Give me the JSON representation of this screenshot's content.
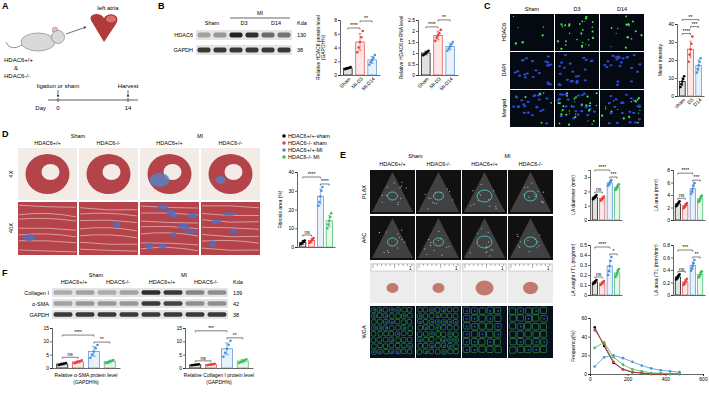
{
  "chart_data": [
    {
      "type": "bar",
      "y_label": "Relative HDAC6 protein level (GAPDH%)",
      "categories": [
        "Sham",
        "MI-D3",
        "MI-D14"
      ],
      "values": [
        1.0,
        4.8,
        2.2
      ],
      "errors": [
        0.1,
        1.2,
        0.5
      ],
      "points": [
        [
          0.85,
          0.95,
          1.0,
          1.05,
          1.15
        ],
        [
          3.3,
          4.0,
          4.8,
          5.5,
          6.4
        ],
        [
          1.5,
          1.9,
          2.2,
          2.5,
          2.9
        ]
      ],
      "colors": [
        "#000000",
        "#e8413c",
        "#4a90d9"
      ],
      "ylim": [
        0,
        8
      ],
      "yticks": [
        0,
        2,
        4,
        6,
        8
      ],
      "annotations": [
        {
          "from": 0,
          "to": 1,
          "text": "****"
        },
        {
          "from": 1,
          "to": 2,
          "text": "**"
        }
      ]
    },
    {
      "type": "bar",
      "y_label": "Relative HDAC6 mRNA level",
      "categories": [
        "Sham",
        "MI-D3",
        "MI-D14"
      ],
      "values": [
        1.0,
        1.8,
        1.3
      ],
      "errors": [
        0.08,
        0.2,
        0.15
      ],
      "points": [
        [
          0.9,
          0.95,
          1.0,
          1.05,
          1.1
        ],
        [
          1.55,
          1.7,
          1.8,
          1.9,
          2.05
        ],
        [
          1.1,
          1.2,
          1.3,
          1.4,
          1.5
        ]
      ],
      "colors": [
        "#000000",
        "#e8413c",
        "#4a90d9"
      ],
      "ylim": [
        0,
        2.5
      ],
      "yticks": [
        0,
        0.5,
        1,
        1.5,
        2,
        2.5
      ],
      "annotations": [
        {
          "from": 0,
          "to": 1,
          "text": "****"
        },
        {
          "from": 1,
          "to": 2,
          "text": "**"
        }
      ]
    },
    {
      "type": "bar",
      "y_label": "Mean intensity",
      "categories": [
        "sham",
        "D3",
        "D14"
      ],
      "values": [
        8,
        26,
        17
      ],
      "errors": [
        2,
        4.5,
        3
      ],
      "points": [
        [
          5,
          6.5,
          8,
          9.5,
          11
        ],
        [
          19,
          23,
          26,
          29,
          33
        ],
        [
          13,
          15,
          17,
          19,
          21
        ]
      ],
      "colors": [
        "#000000",
        "#e8413c",
        "#4a90d9"
      ],
      "ylim": [
        0,
        40
      ],
      "yticks": [
        0,
        10,
        20,
        30,
        40
      ],
      "annotations": [
        {
          "from": 0,
          "to": 1,
          "text": "****"
        },
        {
          "from": 1,
          "to": 2,
          "text": "***"
        },
        {
          "from": 0,
          "to": 2,
          "text": "**"
        }
      ]
    },
    {
      "type": "bar",
      "y_label": "Fibrosis area (%)",
      "categories": [
        null,
        null,
        null,
        null
      ],
      "values": [
        2.5,
        3.5,
        27,
        14
      ],
      "errors": [
        1,
        1.2,
        4,
        3
      ],
      "points": [
        [
          1.5,
          2,
          2.5,
          3,
          3.5
        ],
        [
          2.2,
          3,
          3.5,
          4,
          4.8
        ],
        [
          22,
          24,
          27,
          30,
          32
        ],
        [
          10,
          12,
          14,
          16,
          18
        ]
      ],
      "colors": [
        "#000000",
        "#e8413c",
        "#4a90d9",
        "#3dbb63"
      ],
      "ylim": [
        0,
        40
      ],
      "yticks": [
        0,
        10,
        20,
        30,
        40
      ],
      "annotations": [
        {
          "from": 0,
          "to": 1,
          "text": "ns"
        },
        {
          "from": 0,
          "to": 2,
          "text": "****"
        },
        {
          "from": 2,
          "to": 3,
          "text": "****"
        }
      ]
    },
    {
      "type": "bar",
      "y_label": "LA diameter (mm)",
      "categories": [
        null,
        null,
        null,
        null
      ],
      "values": [
        1.6,
        1.5,
        2.6,
        2.3
      ],
      "errors": [
        0.1,
        0.12,
        0.15,
        0.15
      ],
      "points": [
        [
          1.45,
          1.55,
          1.6,
          1.65,
          1.75
        ],
        [
          1.35,
          1.45,
          1.5,
          1.55,
          1.65
        ],
        [
          2.4,
          2.5,
          2.6,
          2.7,
          2.8
        ],
        [
          2.1,
          2.2,
          2.3,
          2.4,
          2.5
        ]
      ],
      "colors": [
        "#000000",
        "#e8413c",
        "#4a90d9",
        "#3dbb63"
      ],
      "ylim": [
        0,
        3.5
      ],
      "yticks": [
        0,
        1,
        2,
        3
      ],
      "annotations": [
        {
          "from": 0,
          "to": 1,
          "text": "ns"
        },
        {
          "from": 0,
          "to": 2,
          "text": "****"
        },
        {
          "from": 2,
          "to": 3,
          "text": "***"
        }
      ]
    },
    {
      "type": "bar",
      "y_label": "LA area (mm²)",
      "categories": [
        null,
        null,
        null,
        null
      ],
      "values": [
        2.6,
        2.3,
        5.0,
        3.4
      ],
      "errors": [
        0.25,
        0.3,
        0.6,
        0.4
      ],
      "points": [
        [
          2.2,
          2.4,
          2.6,
          2.8,
          3.0
        ],
        [
          1.9,
          2.1,
          2.3,
          2.5,
          2.7
        ],
        [
          4.2,
          4.6,
          5.0,
          5.5,
          5.9
        ],
        [
          2.9,
          3.1,
          3.4,
          3.7,
          3.9
        ]
      ],
      "colors": [
        "#000000",
        "#e8413c",
        "#4a90d9",
        "#3dbb63"
      ],
      "ylim": [
        0,
        8
      ],
      "yticks": [
        0,
        2,
        4,
        6,
        8
      ],
      "annotations": [
        {
          "from": 0,
          "to": 1,
          "text": "ns"
        },
        {
          "from": 0,
          "to": 2,
          "text": "****"
        },
        {
          "from": 2,
          "to": 3,
          "text": "***"
        }
      ]
    },
    {
      "type": "bar",
      "y_label": "LA weight / TL (mg/mm)",
      "categories": [
        null,
        null,
        null,
        null
      ],
      "values": [
        0.13,
        0.12,
        0.29,
        0.22
      ],
      "errors": [
        0.015,
        0.015,
        0.06,
        0.03
      ],
      "points": [
        [
          0.11,
          0.12,
          0.13,
          0.14,
          0.15
        ],
        [
          0.1,
          0.11,
          0.12,
          0.13,
          0.14
        ],
        [
          0.2,
          0.24,
          0.29,
          0.34,
          0.38
        ],
        [
          0.18,
          0.2,
          0.22,
          0.24,
          0.26
        ]
      ],
      "colors": [
        "#000000",
        "#e8413c",
        "#4a90d9",
        "#3dbb63"
      ],
      "ylim": [
        0,
        0.5
      ],
      "yticks": [
        0,
        0.1,
        0.2,
        0.3,
        0.4,
        0.5
      ],
      "annotations": [
        {
          "from": 0,
          "to": 1,
          "text": "ns"
        },
        {
          "from": 0,
          "to": 2,
          "text": "****"
        },
        {
          "from": 2,
          "to": 3,
          "text": "*"
        }
      ]
    },
    {
      "type": "bar",
      "y_label": "LA area / TL (mm²/mm)",
      "categories": [
        null,
        null,
        null,
        null
      ],
      "values": [
        0.29,
        0.21,
        0.47,
        0.33
      ],
      "errors": [
        0.03,
        0.04,
        0.06,
        0.04
      ],
      "points": [
        [
          0.25,
          0.27,
          0.29,
          0.31,
          0.33
        ],
        [
          0.16,
          0.19,
          0.21,
          0.23,
          0.26
        ],
        [
          0.39,
          0.43,
          0.47,
          0.51,
          0.56
        ],
        [
          0.28,
          0.3,
          0.33,
          0.36,
          0.38
        ]
      ],
      "colors": [
        "#000000",
        "#e8413c",
        "#4a90d9",
        "#3dbb63"
      ],
      "ylim": [
        0,
        0.8
      ],
      "yticks": [
        0,
        0.2,
        0.4,
        0.6,
        0.8
      ],
      "annotations": [
        {
          "from": 0,
          "to": 1,
          "text": "ns"
        },
        {
          "from": 0,
          "to": 2,
          "text": "***"
        },
        {
          "from": 2,
          "to": 3,
          "text": "**"
        }
      ]
    },
    {
      "type": "line",
      "y_label": "Frequency(%)",
      "marker": "circle",
      "x": [
        25,
        75,
        125,
        175,
        225,
        275,
        325,
        375,
        425,
        475
      ],
      "xlim": [
        0,
        600
      ],
      "xticks": [
        0,
        200,
        400,
        600
      ],
      "ylim": [
        0,
        60
      ],
      "yticks": [
        0,
        20,
        40,
        60
      ],
      "series": [
        {
          "color": "#000000",
          "values": [
            50,
            30,
            12,
            5,
            2,
            1,
            0,
            0,
            0,
            0
          ]
        },
        {
          "color": "#e8413c",
          "values": [
            47,
            32,
            13,
            5,
            2,
            1,
            0,
            0,
            0,
            0
          ]
        },
        {
          "color": "#4a90d9",
          "values": [
            8,
            18,
            20,
            17,
            13,
            9,
            6,
            4,
            3,
            2
          ]
        },
        {
          "color": "#3dbb63",
          "values": [
            28,
            34,
            18,
            10,
            5,
            3,
            1,
            1,
            0,
            0
          ]
        }
      ]
    },
    {
      "type": "bar",
      "y_label": "Relative α-SMA protein level (GAPDH%)",
      "categories": [
        null,
        null,
        null,
        null
      ],
      "values": [
        1.5,
        2.3,
        6.2,
        2.4
      ],
      "errors": [
        0.3,
        0.4,
        1.8,
        0.5
      ],
      "points": [
        [
          1.1,
          1.3,
          1.5,
          1.7,
          1.9
        ],
        [
          1.8,
          2.1,
          2.3,
          2.5,
          2.9
        ],
        [
          3.8,
          5,
          6.2,
          7.4,
          8.6
        ],
        [
          1.8,
          2.1,
          2.4,
          2.7,
          3.0
        ]
      ],
      "colors": [
        "#000000",
        "#e8413c",
        "#4a90d9",
        "#3dbb63"
      ],
      "ylim": [
        0,
        15
      ],
      "yticks": [
        0,
        5,
        10,
        15
      ],
      "annotations": [
        {
          "from": 0,
          "to": 1,
          "text": "ns"
        },
        {
          "from": 0,
          "to": 2,
          "text": "****"
        },
        {
          "from": 2,
          "to": 3,
          "text": "**"
        }
      ]
    },
    {
      "type": "bar",
      "y_label": "Relative Collagen I protein level (GAPDH%)",
      "categories": [
        null,
        null,
        null,
        null
      ],
      "values": [
        1.2,
        1.3,
        7.2,
        2.6
      ],
      "errors": [
        0.15,
        0.2,
        2.2,
        0.6
      ],
      "points": [
        [
          1.0,
          1.1,
          1.2,
          1.3,
          1.4
        ],
        [
          1.05,
          1.2,
          1.3,
          1.4,
          1.55
        ],
        [
          4.2,
          5.7,
          7.2,
          8.7,
          10.2
        ],
        [
          1.9,
          2.3,
          2.6,
          2.9,
          3.3
        ]
      ],
      "colors": [
        "#000000",
        "#e8413c",
        "#4a90d9",
        "#3dbb63"
      ],
      "ylim": [
        0,
        15
      ],
      "yticks": [
        0,
        5,
        10,
        15
      ],
      "annotations": [
        {
          "from": 0,
          "to": 1,
          "text": "ns"
        },
        {
          "from": 0,
          "to": 2,
          "text": "***"
        },
        {
          "from": 2,
          "to": 3,
          "text": "**"
        }
      ]
    }
  ],
  "panel_labels": [
    "A",
    "B",
    "C",
    "D",
    "E",
    "F"
  ],
  "panel_A": {
    "organ": "left atria",
    "genotype": [
      "HDAC6+/+",
      "&",
      "HDAC6-/-"
    ],
    "procedure": "ligation or sham",
    "day_label": "Day",
    "days": [
      0,
      14
    ],
    "harvest": "Harvest"
  },
  "panel_B": {
    "groups": [
      "Sham",
      "MI"
    ],
    "timepoints": [
      "D3",
      "D14"
    ],
    "rows": [
      "HDAC6",
      "GAPDH"
    ],
    "kda_title": "Kda",
    "kda": [
      "130",
      "38"
    ]
  },
  "panel_C": {
    "columns": [
      "Sham",
      "D3",
      "D14"
    ],
    "rows": [
      "HDAC6",
      "DAPI",
      "Merged"
    ]
  },
  "panel_D": {
    "conditions": [
      "Sham",
      "MI"
    ],
    "genotypes": [
      "HDAC6+/+",
      "HDAC6-/-"
    ],
    "magnifications": [
      "4X",
      "40X"
    ],
    "legend": [
      {
        "name": "HDAC6+/+-sham",
        "color": "#000000"
      },
      {
        "name": "HDAC6-/- sham",
        "color": "#e8413c"
      },
      {
        "name": "HDAC6+/+-MI",
        "color": "#4a90d9"
      },
      {
        "name": "HDAC6-/- MI",
        "color": "#3dbb63"
      }
    ]
  },
  "panel_E": {
    "conditions": [
      "Sham",
      "MI"
    ],
    "genotypes": [
      "HDAC6+/+",
      "HDAC6-/-"
    ],
    "views": [
      "PLAX",
      "A4C"
    ],
    "stain": "WGA",
    "ruler_label": "1"
  },
  "panel_F": {
    "conditions": [
      "Sham",
      "MI"
    ],
    "genotypes": [
      "HDAC6+/+",
      "HDAC6-/-"
    ],
    "rows": [
      "Collagen I",
      "α-SMA",
      "GAPDH"
    ],
    "kda_title": "Kda",
    "kda": [
      "139",
      "42",
      "38"
    ]
  }
}
